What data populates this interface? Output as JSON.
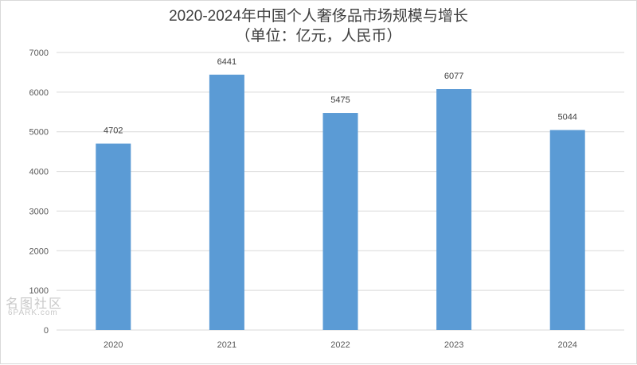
{
  "chart_data": {
    "type": "bar",
    "title": "2020-2024年中国个人奢侈品市场规模与增长",
    "subtitle": "（单位：亿元，人民币）",
    "categories": [
      "2020",
      "2021",
      "2022",
      "2023",
      "2024"
    ],
    "values": [
      4702,
      6441,
      5475,
      6077,
      5044
    ],
    "data_labels": [
      "4702",
      "6441",
      "5475",
      "6077",
      "5044"
    ],
    "yticks": [
      "0",
      "1000",
      "2000",
      "3000",
      "4000",
      "5000",
      "6000",
      "7000"
    ],
    "ylim": [
      0,
      7000
    ],
    "xlabel": "",
    "ylabel": "",
    "grid": true,
    "bar_color": "#5b9bd5",
    "grid_color": "#d9d9d9"
  },
  "watermark": {
    "cn": "名图社区",
    "en": "6PARK.com"
  }
}
